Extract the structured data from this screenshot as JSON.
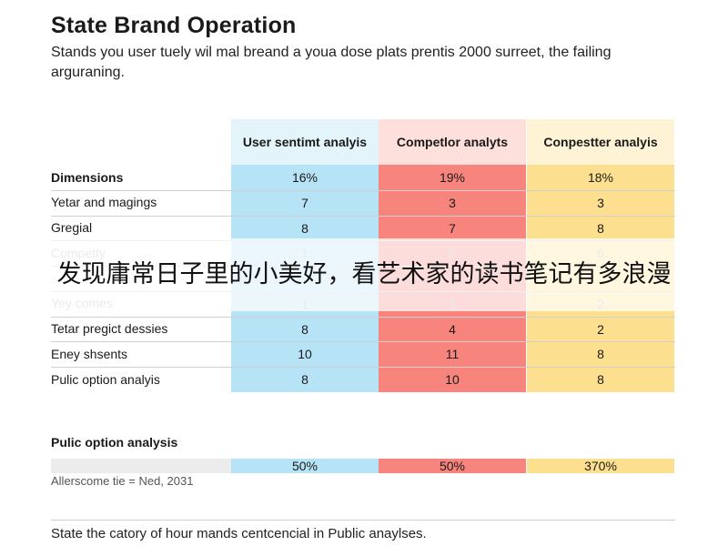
{
  "page": {
    "title": "State Brand Operation",
    "subtitle": "Stands you user tuely wil mal breand a youa dose plats prentis 2000 surreet, the failing arguraning.",
    "overlay_text": "发现庸常日子里的小美好，看艺术家的读书笔记有多浪漫",
    "section2_label": "Pulic option analysis",
    "footnote": "Allerscome tie = Ned, 2031",
    "caption": "State the catory of hour mands centcencial in Public anaylses."
  },
  "colors": {
    "blue_header": "#e3f4fb",
    "blue": "#b7e3f6",
    "red_header": "#fde0dc",
    "red": "#f8857d",
    "yellow_header": "#fff3d5",
    "yellow": "#fde08f"
  },
  "chart_data": {
    "type": "table",
    "title": "State Brand Operation",
    "columns": [
      "User sentimt analyis",
      "Competlor analyts",
      "Conpestter analyis"
    ],
    "rows": [
      {
        "label": "Dimensions",
        "values": [
          "16%",
          "19%",
          "18%"
        ]
      },
      {
        "label": "Yetar and magings",
        "values": [
          "7",
          "3",
          "3"
        ]
      },
      {
        "label": "Gregial",
        "values": [
          "8",
          "7",
          "8"
        ]
      },
      {
        "label": "Competty",
        "values": [
          "1",
          "5",
          "6"
        ]
      },
      {
        "label": "",
        "values": [
          "",
          "",
          ""
        ]
      },
      {
        "label": "Yey comes",
        "values": [
          "1",
          "1",
          "2"
        ]
      },
      {
        "label": "Tetar pregict dessies",
        "values": [
          "8",
          "4",
          "2"
        ]
      },
      {
        "label": "Eney shsents",
        "values": [
          "10",
          "11",
          "8"
        ]
      },
      {
        "label": "Pulic option analyis",
        "values": [
          "8",
          "10",
          "8"
        ]
      }
    ],
    "summary": {
      "label": "Pulic option analysis",
      "values": [
        "50%",
        "50%",
        "370%"
      ]
    }
  }
}
